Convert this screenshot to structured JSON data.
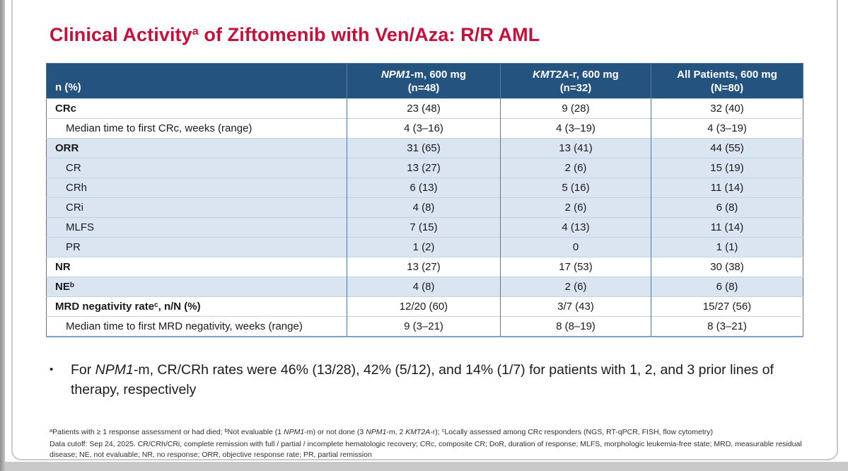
{
  "title": {
    "text": "Clinical Activity",
    "sup": "a",
    "rest": " of Ziftomenib with Ven/Aza: R/R AML"
  },
  "colors": {
    "title_red": "#c5113a",
    "header_navy": "#255380",
    "shaded_row_blue": "#dbe5f1",
    "table_border_blue": "#53779f"
  },
  "table": {
    "corner_header": "n (%)",
    "columns": [
      {
        "line1": [
          {
            "t": "NPM1",
            "i": true
          },
          {
            "t": "-m, 600 mg"
          }
        ],
        "line2": "(n=48)"
      },
      {
        "line1": [
          {
            "t": "KMT2A",
            "i": true
          },
          {
            "t": "-r, 600 mg"
          }
        ],
        "line2": "(n=32)"
      },
      {
        "line1": [
          {
            "t": "All Patients, 600 mg"
          }
        ],
        "line2": "(N=80)"
      }
    ],
    "rows": [
      {
        "label": [
          {
            "t": "CRc"
          }
        ],
        "bold": true,
        "shaded": false,
        "indent": false,
        "values": [
          "23 (48)",
          "9 (28)",
          "32 (40)"
        ]
      },
      {
        "label": [
          {
            "t": "Median time to first CRc, weeks (range)"
          }
        ],
        "bold": false,
        "shaded": false,
        "indent": true,
        "values": [
          "4 (3–16)",
          "4 (3–19)",
          "4 (3–19)"
        ]
      },
      {
        "label": [
          {
            "t": "ORR"
          }
        ],
        "bold": true,
        "shaded": true,
        "indent": false,
        "values": [
          "31 (65)",
          "13 (41)",
          "44 (55)"
        ]
      },
      {
        "label": [
          {
            "t": "CR"
          }
        ],
        "bold": false,
        "shaded": true,
        "indent": true,
        "values": [
          "13 (27)",
          "2 (6)",
          "15 (19)"
        ]
      },
      {
        "label": [
          {
            "t": "CRh"
          }
        ],
        "bold": false,
        "shaded": true,
        "indent": true,
        "values": [
          "6 (13)",
          "5 (16)",
          "11 (14)"
        ]
      },
      {
        "label": [
          {
            "t": "CRi"
          }
        ],
        "bold": false,
        "shaded": true,
        "indent": true,
        "values": [
          "4 (8)",
          "2 (6)",
          "6 (8)"
        ]
      },
      {
        "label": [
          {
            "t": "MLFS"
          }
        ],
        "bold": false,
        "shaded": true,
        "indent": true,
        "values": [
          "7 (15)",
          "4 (13)",
          "11 (14)"
        ]
      },
      {
        "label": [
          {
            "t": "PR"
          }
        ],
        "bold": false,
        "shaded": true,
        "indent": true,
        "values": [
          "1 (2)",
          "0",
          "1 (1)"
        ]
      },
      {
        "label": [
          {
            "t": "NR"
          }
        ],
        "bold": true,
        "shaded": false,
        "indent": false,
        "values": [
          "13 (27)",
          "17 (53)",
          "30 (38)"
        ]
      },
      {
        "label": [
          {
            "t": "NE"
          },
          {
            "t": "b",
            "sup": true
          }
        ],
        "bold": true,
        "shaded": true,
        "indent": false,
        "values": [
          "4 (8)",
          "2 (6)",
          "6 (8)"
        ]
      },
      {
        "label": [
          {
            "t": "MRD negativity rate"
          },
          {
            "t": "c",
            "sup": true
          },
          {
            "t": ", n/N (%)"
          }
        ],
        "bold": true,
        "shaded": false,
        "indent": false,
        "values": [
          "12/20 (60)",
          "3/7 (43)",
          "15/27 (56)"
        ]
      },
      {
        "label": [
          {
            "t": "Median time to first MRD negativity, weeks (range)"
          }
        ],
        "bold": false,
        "shaded": false,
        "indent": true,
        "values": [
          "9 (3–21)",
          "8 (8–19)",
          "8 (3–21)"
        ]
      }
    ]
  },
  "bullet": {
    "glyph": "•",
    "parts": [
      {
        "t": "For "
      },
      {
        "t": "NPM1",
        "i": true
      },
      {
        "t": "-m, CR/CRh rates were 46% (13/28), 42% (5/12), and 14% (1/7) for patients with 1, 2, and 3 prior lines of therapy, respectively"
      }
    ]
  },
  "footnotes": {
    "abc_parts": [
      {
        "t": "a",
        "sup": true
      },
      {
        "t": "Patients with ≥ 1 response assessment or had died; "
      },
      {
        "t": "b",
        "sup": true
      },
      {
        "t": "Not evaluable (1 "
      },
      {
        "t": "NPM1",
        "i": true
      },
      {
        "t": "-m) or not done (3 "
      },
      {
        "t": "NPM1",
        "i": true
      },
      {
        "t": "-m, 2 "
      },
      {
        "t": "KMT2A",
        "i": true
      },
      {
        "t": "-r); "
      },
      {
        "t": "c",
        "sup": true
      },
      {
        "t": "Locally assessed among CRc responders (NGS, RT-qPCR, FISH, flow cytometry)"
      }
    ],
    "definitions": "Data cutoff: Sep 24, 2025. CR/CRh/CRi, complete remission with full / partial / incomplete hematologic recovery; CRc, composite CR; DoR, duration of response; MLFS, morphologic leukemia-free state; MRD, measurable residual disease; NE, not evaluable; NR, no response; ORR, objective response rate; PR, partial remission"
  }
}
